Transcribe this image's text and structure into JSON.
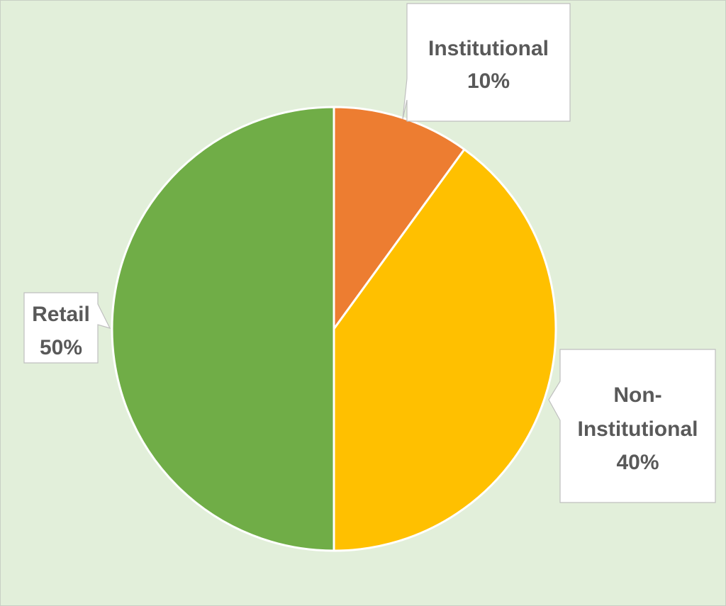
{
  "chart_data": {
    "type": "pie",
    "title": "",
    "slices": [
      {
        "label": "Institutional",
        "value": 10,
        "percent_label": "10%",
        "color": "#ed7d31"
      },
      {
        "label": "Non-Institutional",
        "value": 40,
        "percent_label": "40%",
        "color": "#ffc000"
      },
      {
        "label": "Retail",
        "value": 50,
        "percent_label": "50%",
        "color": "#70ad47"
      }
    ],
    "start_angle": "12 o'clock",
    "direction": "clockwise",
    "label_style": "callout",
    "legend": "none"
  },
  "colors": {
    "background": "#e2efda",
    "slice_border": "#ffffff",
    "label_text": "#595959",
    "callout_fill": "#ffffff",
    "callout_border": "#bfbfbf"
  }
}
